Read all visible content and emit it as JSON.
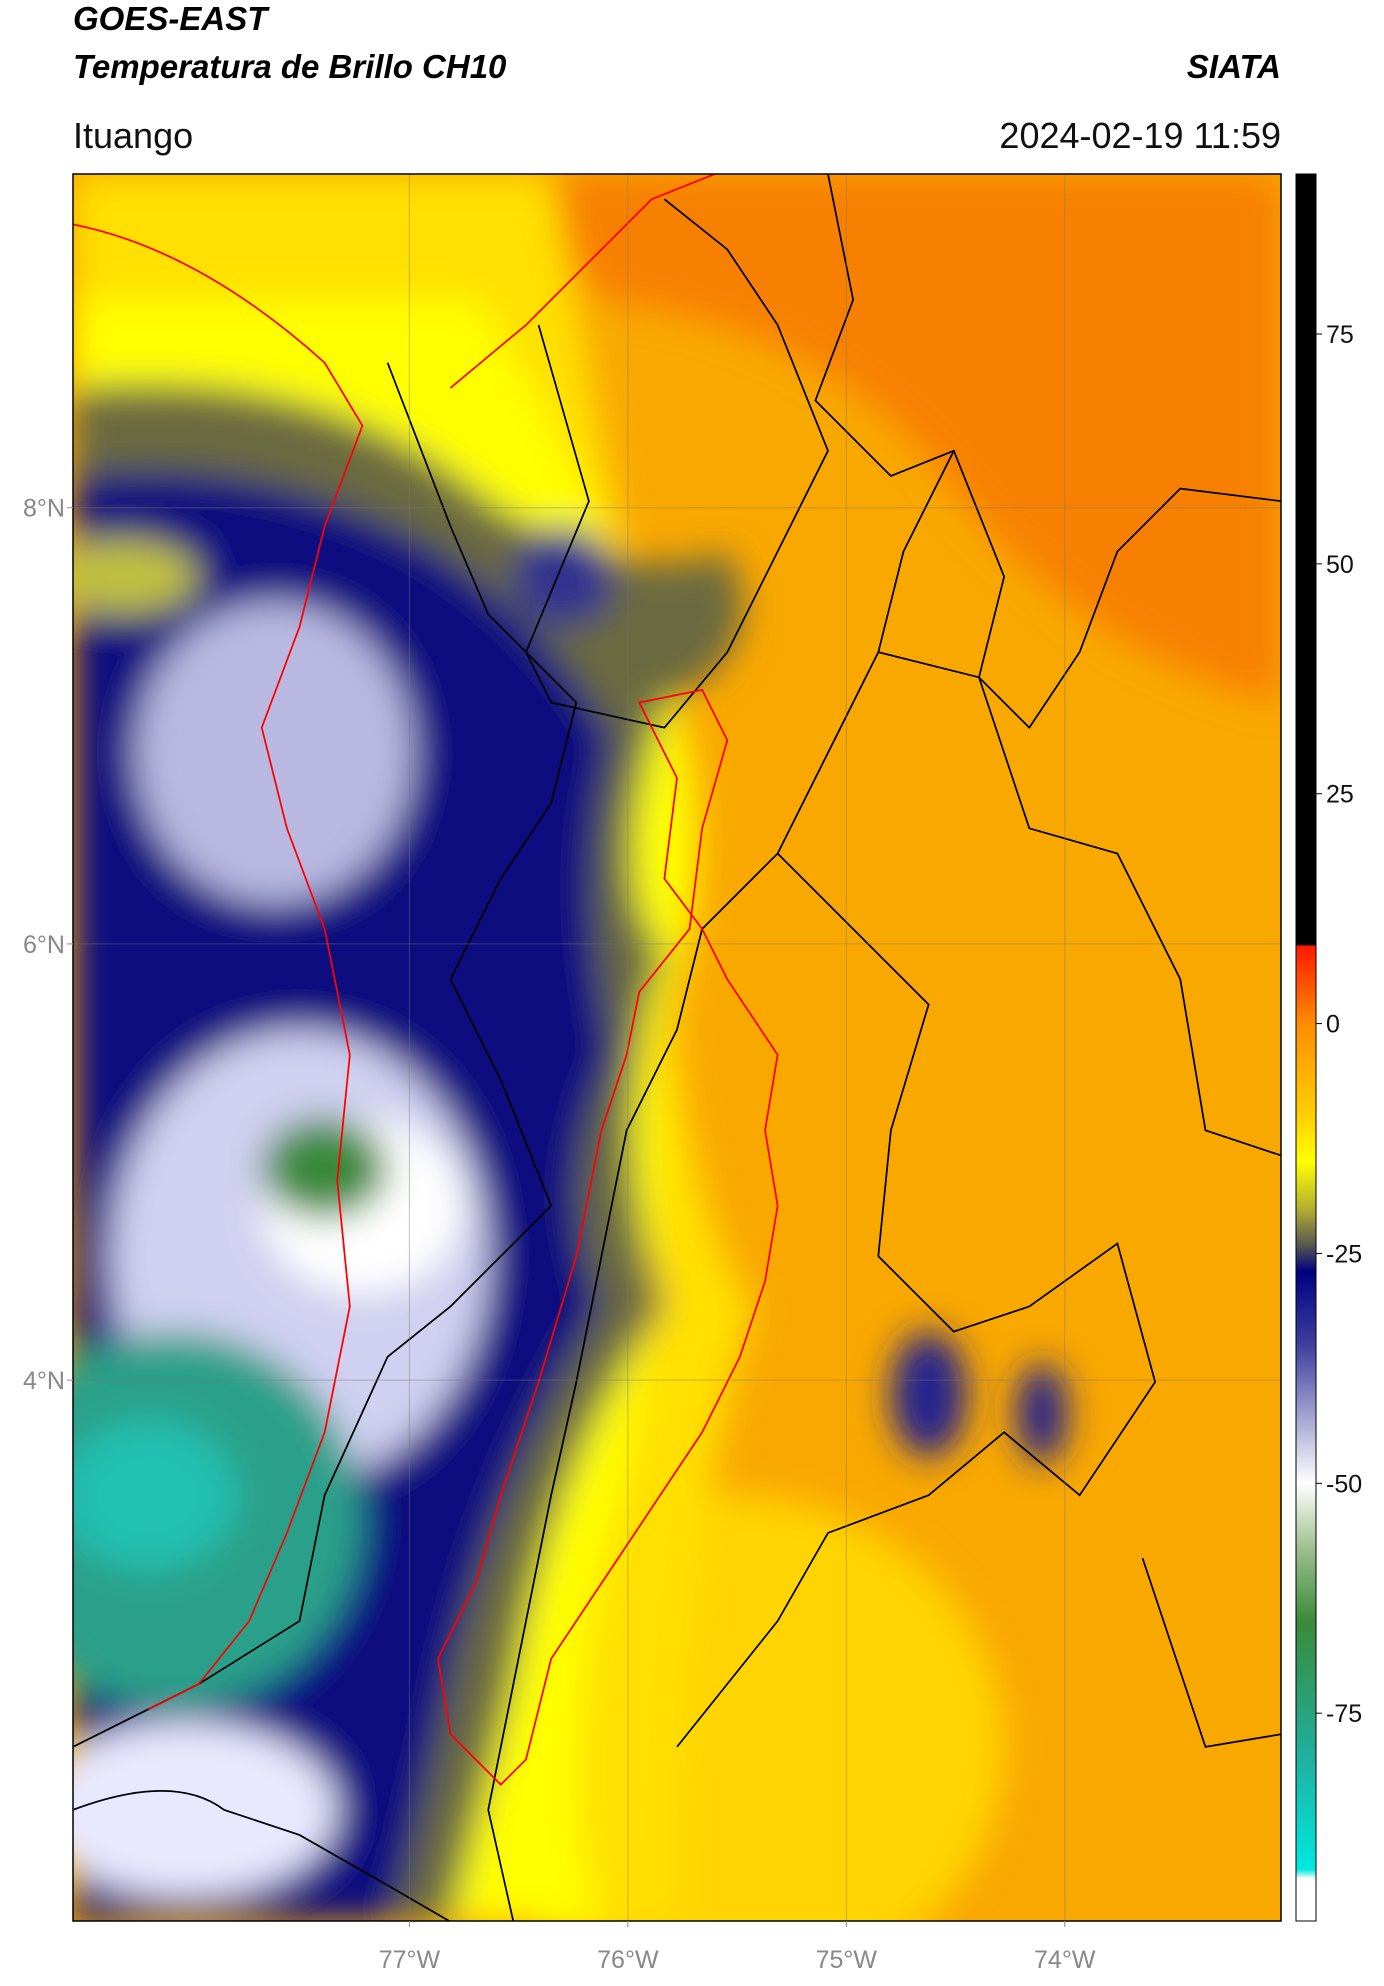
{
  "header": {
    "title": "GOES-EAST",
    "subtitle": "Temperatura de Brillo CH10",
    "source": "SIATA",
    "location": "Ituango",
    "timestamp": "2024-02-19 11:59"
  },
  "map": {
    "xlim": [
      -78.54,
      -73.01
    ],
    "ylim": [
      1.52,
      9.53
    ],
    "xticks": [
      {
        "value": -77,
        "label": "77°W"
      },
      {
        "value": -76,
        "label": "76°W"
      },
      {
        "value": -75,
        "label": "75°W"
      },
      {
        "value": -74,
        "label": "74°W"
      }
    ],
    "yticks": [
      {
        "value": 4,
        "label": "4°N"
      },
      {
        "value": 6,
        "label": "6°N"
      },
      {
        "value": 8,
        "label": "8°N"
      }
    ],
    "grid": true
  },
  "colorbar": {
    "lim": [
      -97.6,
      92.4
    ],
    "ticks": [
      -75,
      -50,
      -25,
      0,
      25,
      50,
      75
    ],
    "stops": [
      {
        "value": 92.4,
        "color": "#000000"
      },
      {
        "value": 8.6,
        "color": "#000000"
      },
      {
        "value": 8.4,
        "color": "#ff1a00"
      },
      {
        "value": 0,
        "color": "#ff8c00"
      },
      {
        "value": -10,
        "color": "#ffd000"
      },
      {
        "value": -15,
        "color": "#ffff00"
      },
      {
        "value": -20,
        "color": "#b8b030"
      },
      {
        "value": -24,
        "color": "#5a5a50"
      },
      {
        "value": -27,
        "color": "#000080"
      },
      {
        "value": -35,
        "color": "#4040a0"
      },
      {
        "value": -45,
        "color": "#c0c0e0"
      },
      {
        "value": -50,
        "color": "#ffffff"
      },
      {
        "value": -57,
        "color": "#a0c090"
      },
      {
        "value": -65,
        "color": "#3a8a3a"
      },
      {
        "value": -80,
        "color": "#20b0a0"
      },
      {
        "value": -92,
        "color": "#00e8e0"
      },
      {
        "value": -93,
        "color": "#ffffff"
      },
      {
        "value": -97.6,
        "color": "#ffffff"
      }
    ]
  }
}
